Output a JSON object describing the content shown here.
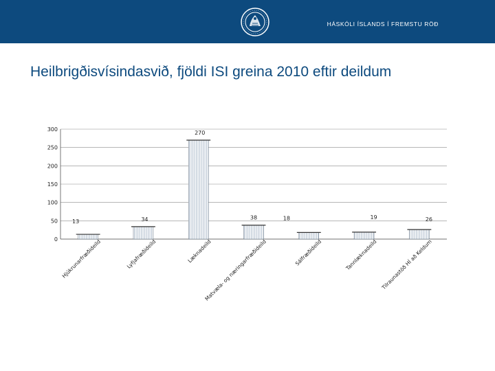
{
  "header": {
    "text": "HÁSKÓLI ÍSLANDS Í FREMSTU RÖÐ",
    "logo_icon": "university-seal-icon",
    "band_color": "#0d4a7e"
  },
  "page": {
    "title": "Heilbrigðisvísindasvið, fjöldi ISI greina 2010 eftir deildum"
  },
  "chart_data": {
    "type": "bar",
    "title": "",
    "xlabel": "",
    "ylabel": "",
    "ylim": [
      0,
      300
    ],
    "yticks": [
      0,
      50,
      100,
      150,
      200,
      250,
      300
    ],
    "categories": [
      "Hjúkrunarfræðideild",
      "Lyfjafræðideild",
      "Læknadeild",
      "Matvæla- og næringarfræðideild",
      "Sálfræðideild",
      "Tannlæknadeild",
      "Tilraunastöð HÍ að Keldum"
    ],
    "values": [
      13,
      34,
      270,
      38,
      18,
      19,
      26
    ],
    "bar_color": "#b8c4d2",
    "grid": true
  }
}
